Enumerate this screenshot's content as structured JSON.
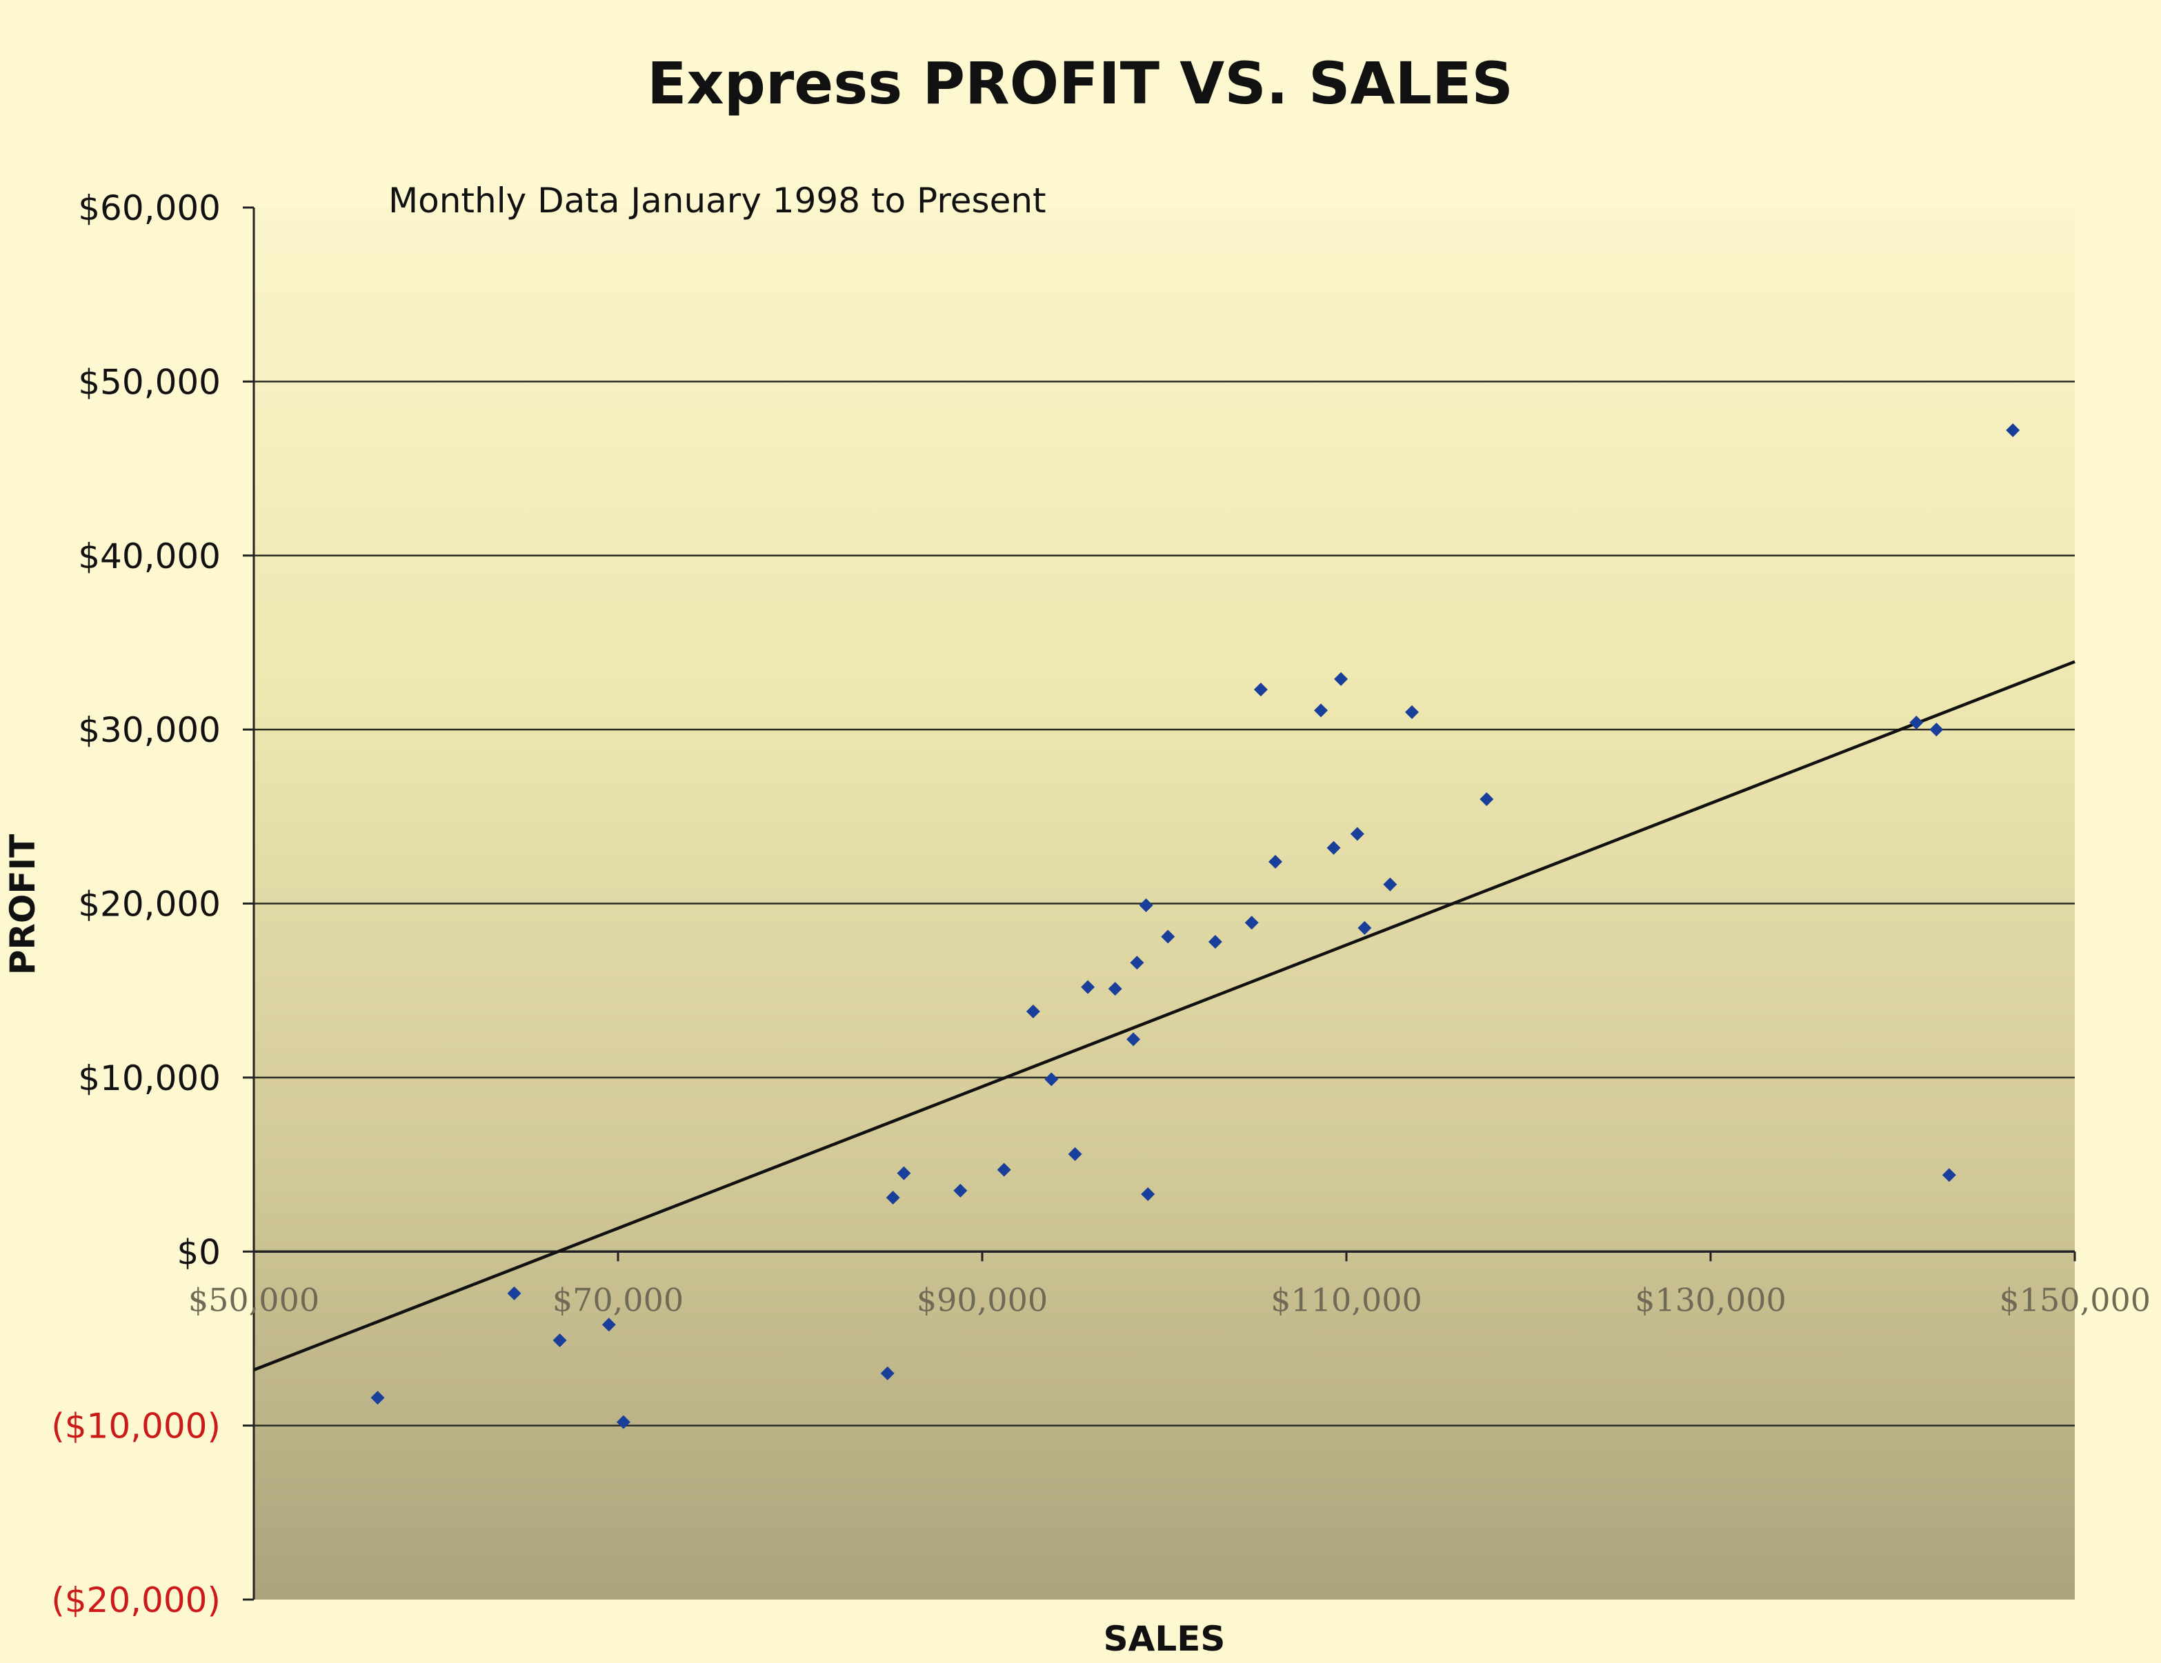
{
  "chart_data": {
    "type": "scatter",
    "title": "Express PROFIT VS. SALES",
    "subtitle": "Monthly Data January 1998 to Present",
    "xlabel": "SALES",
    "ylabel": "PROFIT",
    "xlim": [
      50000,
      150000
    ],
    "ylim": [
      -20000,
      60000
    ],
    "x_ticks": [
      50000,
      70000,
      90000,
      110000,
      130000,
      150000
    ],
    "x_tick_labels": [
      "$50,000",
      "$70,000",
      "$90,000",
      "$110,000",
      "$130,000",
      "$150,000"
    ],
    "y_ticks": [
      60000,
      50000,
      40000,
      30000,
      20000,
      10000,
      0,
      -10000,
      -20000
    ],
    "y_tick_labels": [
      "$60,000",
      "$50,000",
      "$40,000",
      "$30,000",
      "$20,000",
      "$10,000",
      "$0",
      "($10,000)",
      "($20,000)"
    ],
    "negative_label_color": "#cc1a1a",
    "positive_label_color": "#111111",
    "marker_color": "#1a3f9a",
    "trendline_color": "#111111",
    "grid": "horizontal major gridlines",
    "legend": "none",
    "points": [
      {
        "x": 56800,
        "y": -8400
      },
      {
        "x": 64300,
        "y": -2400
      },
      {
        "x": 66800,
        "y": -5100
      },
      {
        "x": 69500,
        "y": -4200
      },
      {
        "x": 70300,
        "y": -9800
      },
      {
        "x": 84800,
        "y": -7000
      },
      {
        "x": 85100,
        "y": 3100
      },
      {
        "x": 85700,
        "y": 4500
      },
      {
        "x": 88800,
        "y": 3500
      },
      {
        "x": 91200,
        "y": 4700
      },
      {
        "x": 92800,
        "y": 13800
      },
      {
        "x": 93800,
        "y": 9900
      },
      {
        "x": 95100,
        "y": 5600
      },
      {
        "x": 95800,
        "y": 15200
      },
      {
        "x": 97300,
        "y": 15100
      },
      {
        "x": 98300,
        "y": 12200
      },
      {
        "x": 98500,
        "y": 16600
      },
      {
        "x": 99000,
        "y": 19900
      },
      {
        "x": 99100,
        "y": 3300
      },
      {
        "x": 100200,
        "y": 18100
      },
      {
        "x": 102800,
        "y": 17800
      },
      {
        "x": 104800,
        "y": 18900
      },
      {
        "x": 105300,
        "y": 32300
      },
      {
        "x": 106100,
        "y": 22400
      },
      {
        "x": 108600,
        "y": 31100
      },
      {
        "x": 109300,
        "y": 23200
      },
      {
        "x": 109700,
        "y": 32900
      },
      {
        "x": 110600,
        "y": 24000
      },
      {
        "x": 111000,
        "y": 18600
      },
      {
        "x": 112400,
        "y": 21100
      },
      {
        "x": 113600,
        "y": 31000
      },
      {
        "x": 117700,
        "y": 26000
      },
      {
        "x": 141300,
        "y": 30400
      },
      {
        "x": 142400,
        "y": 30000
      },
      {
        "x": 143100,
        "y": 4400
      },
      {
        "x": 146600,
        "y": 47200
      }
    ],
    "trendline": {
      "x": [
        50000,
        150000
      ],
      "y": [
        -6800,
        33900
      ]
    }
  }
}
